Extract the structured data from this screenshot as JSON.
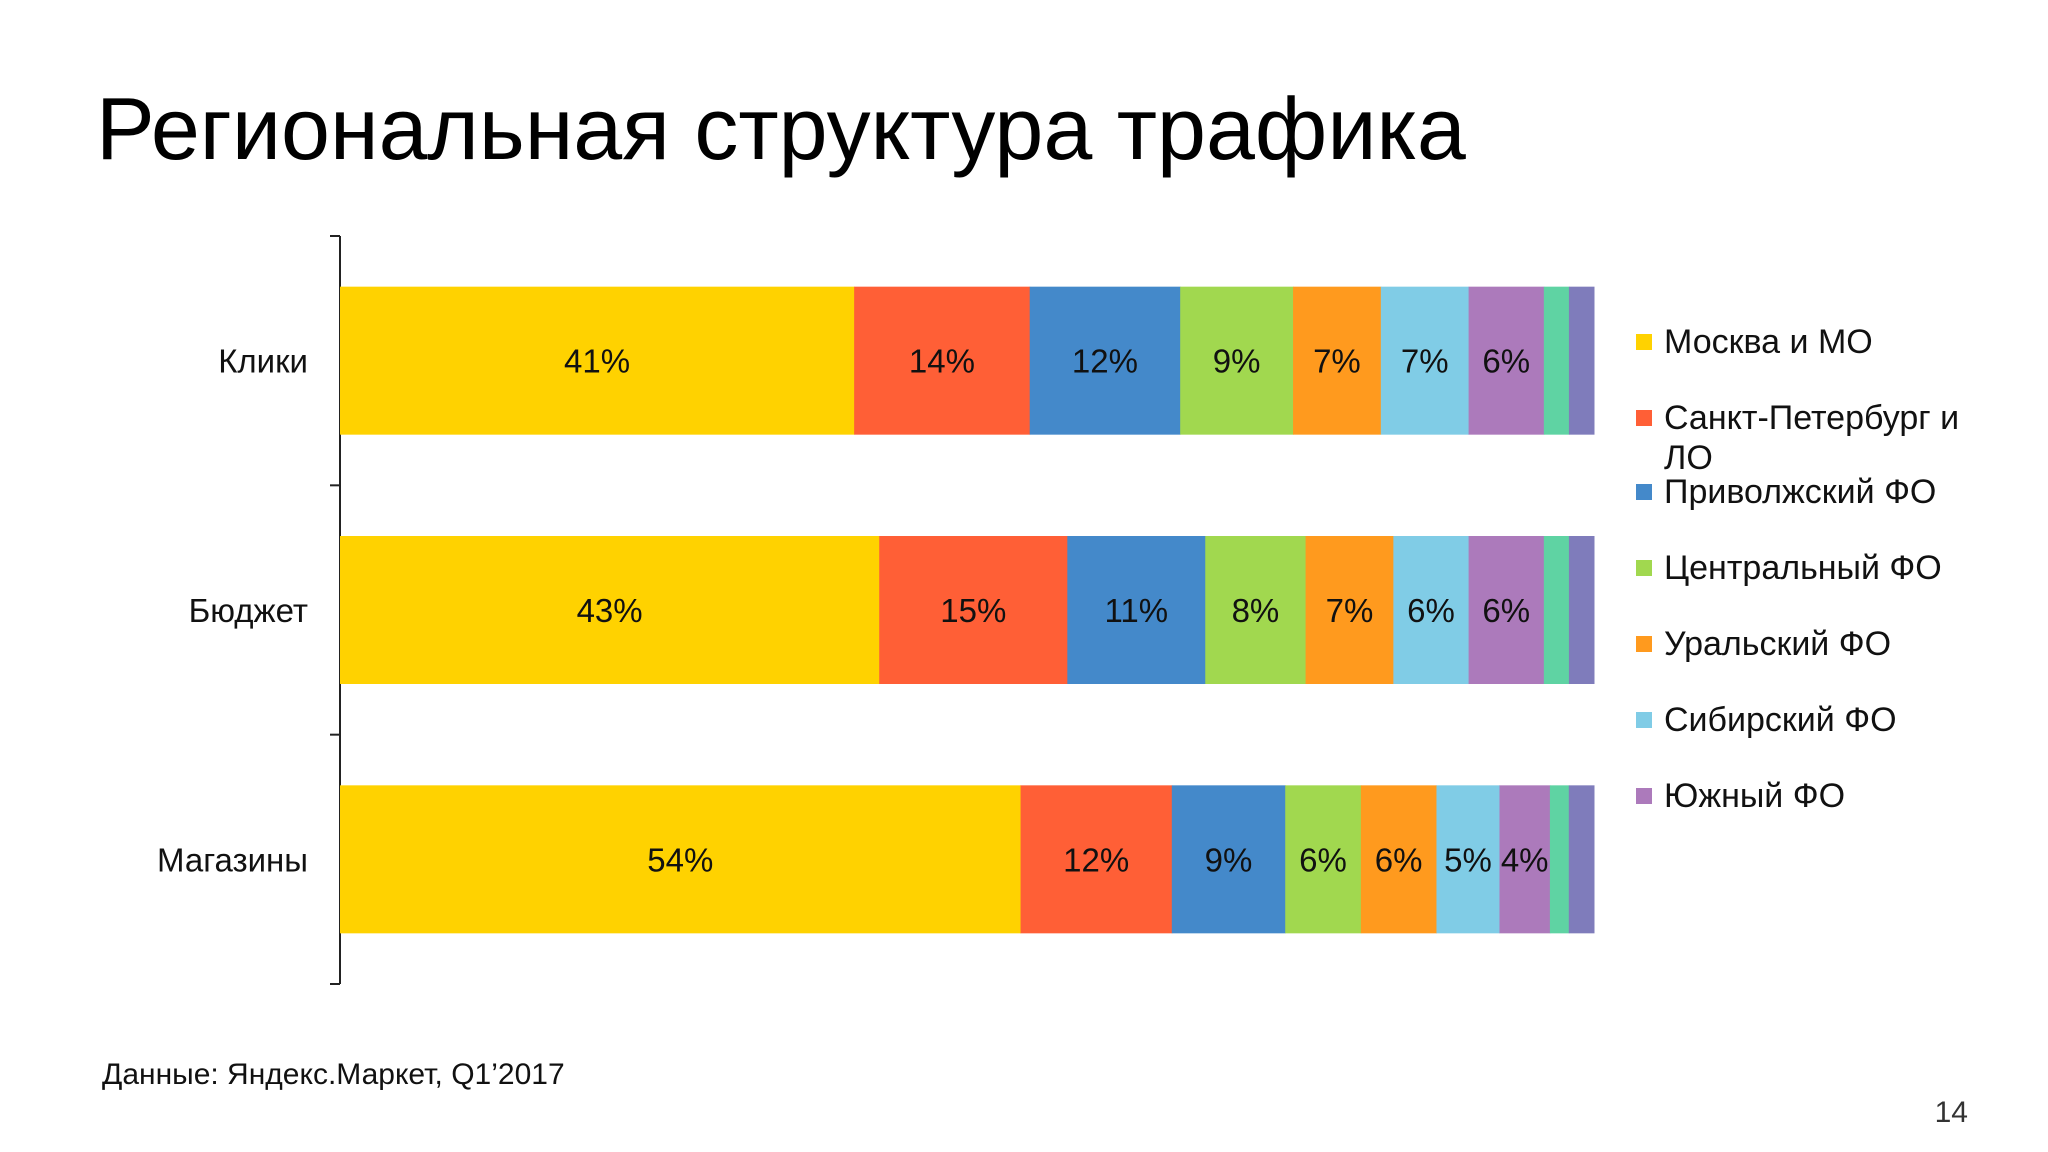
{
  "slide": {
    "title": "Региональная структура трафика",
    "source": "Данные: Яндекс.Маркет, Q1’2017",
    "page_number": "14"
  },
  "chart_data": {
    "type": "bar",
    "orientation": "horizontal",
    "stacked": "percent",
    "categories": [
      "Клики",
      "Бюджет",
      "Магазины"
    ],
    "series": [
      {
        "name": "Москва и МО",
        "color": "#FFD200",
        "values": [
          41,
          43,
          54
        ],
        "labels": [
          "41%",
          "43%",
          "54%"
        ]
      },
      {
        "name": "Санкт-Петербург и ЛО",
        "color": "#FF5F36",
        "values": [
          14,
          15,
          12
        ],
        "labels": [
          "14%",
          "15%",
          "12%"
        ]
      },
      {
        "name": "Приволжский ФО",
        "color": "#4489CA",
        "values": [
          12,
          11,
          9
        ],
        "labels": [
          "12%",
          "11%",
          "9%"
        ]
      },
      {
        "name": "Центральный ФО",
        "color": "#A1D84F",
        "values": [
          9,
          8,
          6
        ],
        "labels": [
          "9%",
          "8%",
          "6%"
        ]
      },
      {
        "name": "Уральский ФО",
        "color": "#FF9A1E",
        "values": [
          7,
          7,
          6
        ],
        "labels": [
          "7%",
          "7%",
          "6%"
        ]
      },
      {
        "name": "Сибирский ФО",
        "color": "#80CCE6",
        "values": [
          7,
          6,
          5
        ],
        "labels": [
          "7%",
          "6%",
          "5%"
        ]
      },
      {
        "name": "Южный ФО",
        "color": "#AC7ABB",
        "values": [
          6,
          6,
          4
        ],
        "labels": [
          "6%",
          "6%",
          "4%"
        ]
      },
      {
        "color": "#5FD3A3",
        "values": [
          2,
          2,
          1.5
        ],
        "labels": [
          "",
          "",
          ""
        ]
      },
      {
        "color": "#7F7CBB",
        "values": [
          2,
          2,
          2
        ],
        "labels": [
          "",
          "",
          ""
        ]
      }
    ],
    "legend_items": [
      "Москва и МО",
      "Санкт-Петербург и ЛО",
      "Приволжский ФО",
      "Центральный ФО",
      "Уральский ФО",
      "Сибирский ФО",
      "Южный ФО"
    ],
    "legend_position": "right",
    "grid": false
  }
}
